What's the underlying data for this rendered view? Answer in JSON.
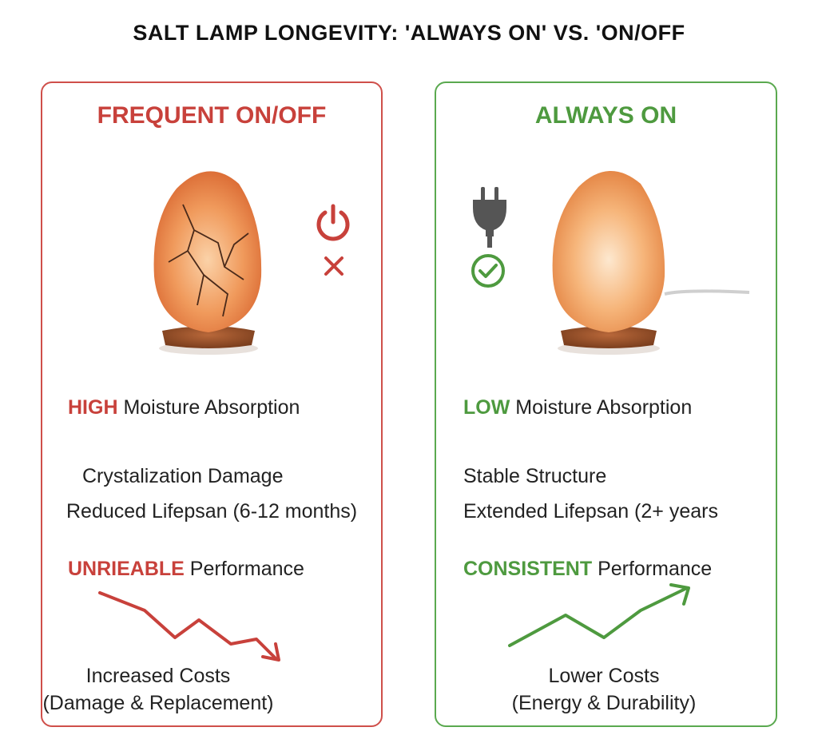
{
  "title": "SALT LAMP LONGEVITY: 'ALWAYS ON' VS. 'ON/OFF",
  "colors": {
    "bad": "#c8413b",
    "good": "#4e9a3f",
    "lamp": "#f08a4b"
  },
  "left": {
    "heading": "FREQUENT ON/OFF",
    "icons": [
      "power-icon",
      "x-icon"
    ],
    "moisture": {
      "level": "HIGH",
      "text": "Moisture Absorption"
    },
    "effect1": "Crystalization Damage",
    "effect2": "Reduced Lifepsan (6-12 months)",
    "performance": {
      "level": "UNRIEABLE",
      "text": "Performance"
    },
    "costs": {
      "line1": "Increased Costs",
      "line2": "(Damage & Replacement)"
    }
  },
  "right": {
    "heading": "ALWAYS ON",
    "icons": [
      "plug-icon",
      "check-circle-icon"
    ],
    "moisture": {
      "level": "LOW",
      "text": "Moisture Absorption"
    },
    "effect1": "Stable Structure",
    "effect2": "Extended Lifepsan (2+ years",
    "performance": {
      "level": "CONSISTENT",
      "text": "Performance"
    },
    "costs": {
      "line1": "Lower Costs",
      "line2": "(Energy & Durability)"
    }
  }
}
